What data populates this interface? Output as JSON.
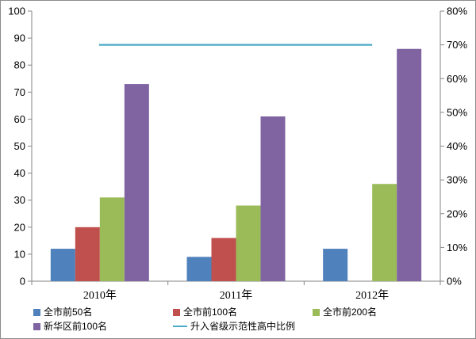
{
  "chart_data": {
    "type": "bar",
    "categories": [
      "2010年",
      "2011年",
      "2012年"
    ],
    "series": [
      {
        "name": "全市前50名",
        "values": [
          12,
          9,
          12
        ],
        "color": "#4F81BD",
        "axis": "left"
      },
      {
        "name": "全市前100名",
        "values": [
          20,
          16,
          null
        ],
        "color": "#C0504D",
        "axis": "left"
      },
      {
        "name": "全市前200名",
        "values": [
          31,
          28,
          36
        ],
        "color": "#9BBB59",
        "axis": "left"
      },
      {
        "name": "新华区前100名",
        "values": [
          73,
          61,
          86
        ],
        "color": "#8064A2",
        "axis": "left"
      }
    ],
    "line_series": {
      "name": "升入省级示范性高中比例",
      "values": [
        0.7,
        0.7,
        0.7
      ],
      "color": "#4BACC6",
      "axis": "right",
      "type": "line"
    },
    "ylim": [
      0,
      100
    ],
    "y_ticks": [
      "0",
      "10",
      "20",
      "30",
      "40",
      "50",
      "60",
      "70",
      "80",
      "90",
      "100"
    ],
    "y2lim": [
      0,
      0.8
    ],
    "y2_ticks": [
      "0%",
      "10%",
      "20%",
      "30%",
      "40%",
      "50%",
      "60%",
      "70%",
      "80%"
    ],
    "grid": false,
    "legend": "bottom"
  }
}
